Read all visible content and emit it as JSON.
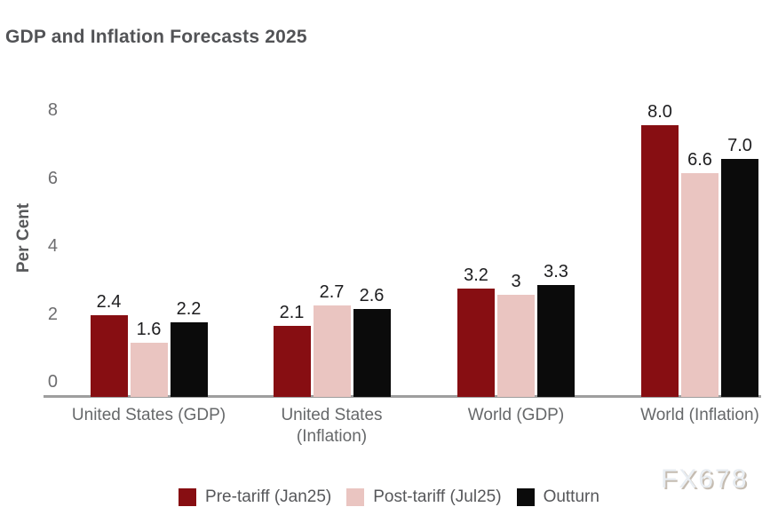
{
  "title": "GDP and Inflation Forecasts 2025",
  "watermark": "FX678",
  "chart_data": {
    "type": "bar",
    "title": "GDP and Inflation Forecasts 2025",
    "xlabel": "",
    "ylabel": "Per Cent",
    "ylim": [
      0,
      8
    ],
    "yticks": [
      0,
      2,
      4,
      6,
      8
    ],
    "grid": false,
    "legend_position": "bottom",
    "categories": [
      "United States (GDP)",
      "United States (Inflation)",
      "World (GDP)",
      "World (Inflation)"
    ],
    "series": [
      {
        "name": "Pre-tariff (Jan25)",
        "color": "#870e12",
        "values": [
          2.4,
          2.1,
          3.2,
          8.0
        ],
        "labels": [
          "2.4",
          "2.1",
          "3.2",
          "8.0"
        ]
      },
      {
        "name": "Post-tariff (Jul25)",
        "color": "#eac5c1",
        "values": [
          1.6,
          2.7,
          3.0,
          6.6
        ],
        "labels": [
          "1.6",
          "2.7",
          "3",
          "6.6"
        ]
      },
      {
        "name": "Outturn",
        "color": "#0b0b0b",
        "values": [
          2.2,
          2.6,
          3.3,
          7.0
        ],
        "labels": [
          "2.2",
          "2.6",
          "3.3",
          "7.0"
        ]
      }
    ],
    "axis_color": "#9e9e9e"
  }
}
